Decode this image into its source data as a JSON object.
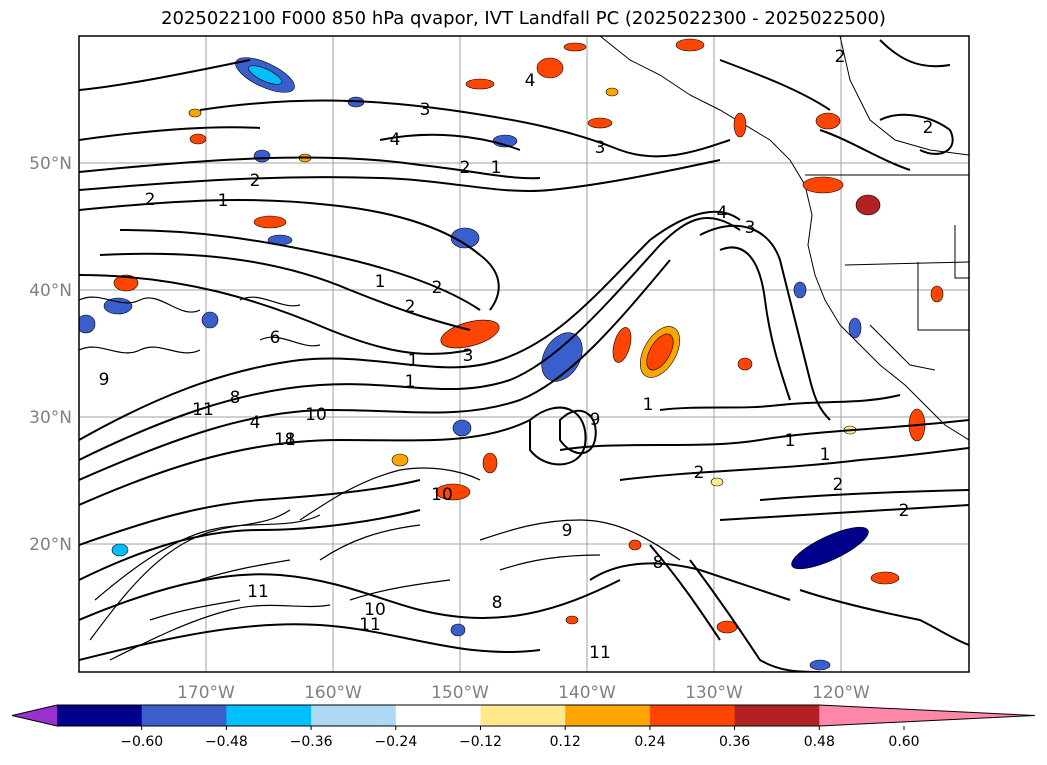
{
  "title": "2025022100 F000 850 hPa qvapor, IVT Landfall PC (2025022300 - 2025022500)",
  "map": {
    "lat_labels": [
      "50°N",
      "40°N",
      "30°N",
      "20°N"
    ],
    "lon_labels": [
      "170°W",
      "160°W",
      "150°W",
      "140°W",
      "130°W",
      "120°W"
    ],
    "contour_labels": [
      "2",
      "4",
      "3",
      "4",
      "2",
      "1",
      "2",
      "1",
      "3",
      "1",
      "2",
      "4",
      "3",
      "2",
      "1",
      "3",
      "9",
      "9",
      "1",
      "4",
      "8",
      "11",
      "11",
      "10",
      "10",
      "11",
      "8",
      "1",
      "2",
      "1",
      "2",
      "2",
      "1",
      "2",
      "8",
      "9",
      "8",
      "10",
      "11",
      "6",
      "11",
      "2"
    ]
  },
  "colorbar": {
    "ticks": [
      "−0.60",
      "−0.48",
      "−0.36",
      "−0.24",
      "−0.12",
      "0.12",
      "0.24",
      "0.36",
      "0.48",
      "0.60"
    ],
    "colors": [
      "#9932cc",
      "#00008b",
      "#3a5fcd",
      "#00bfff",
      "#add8f6",
      "#ffffff",
      "#ffe98a",
      "#ffa500",
      "#ff4500",
      "#b22222",
      "#ff88a8"
    ]
  }
}
